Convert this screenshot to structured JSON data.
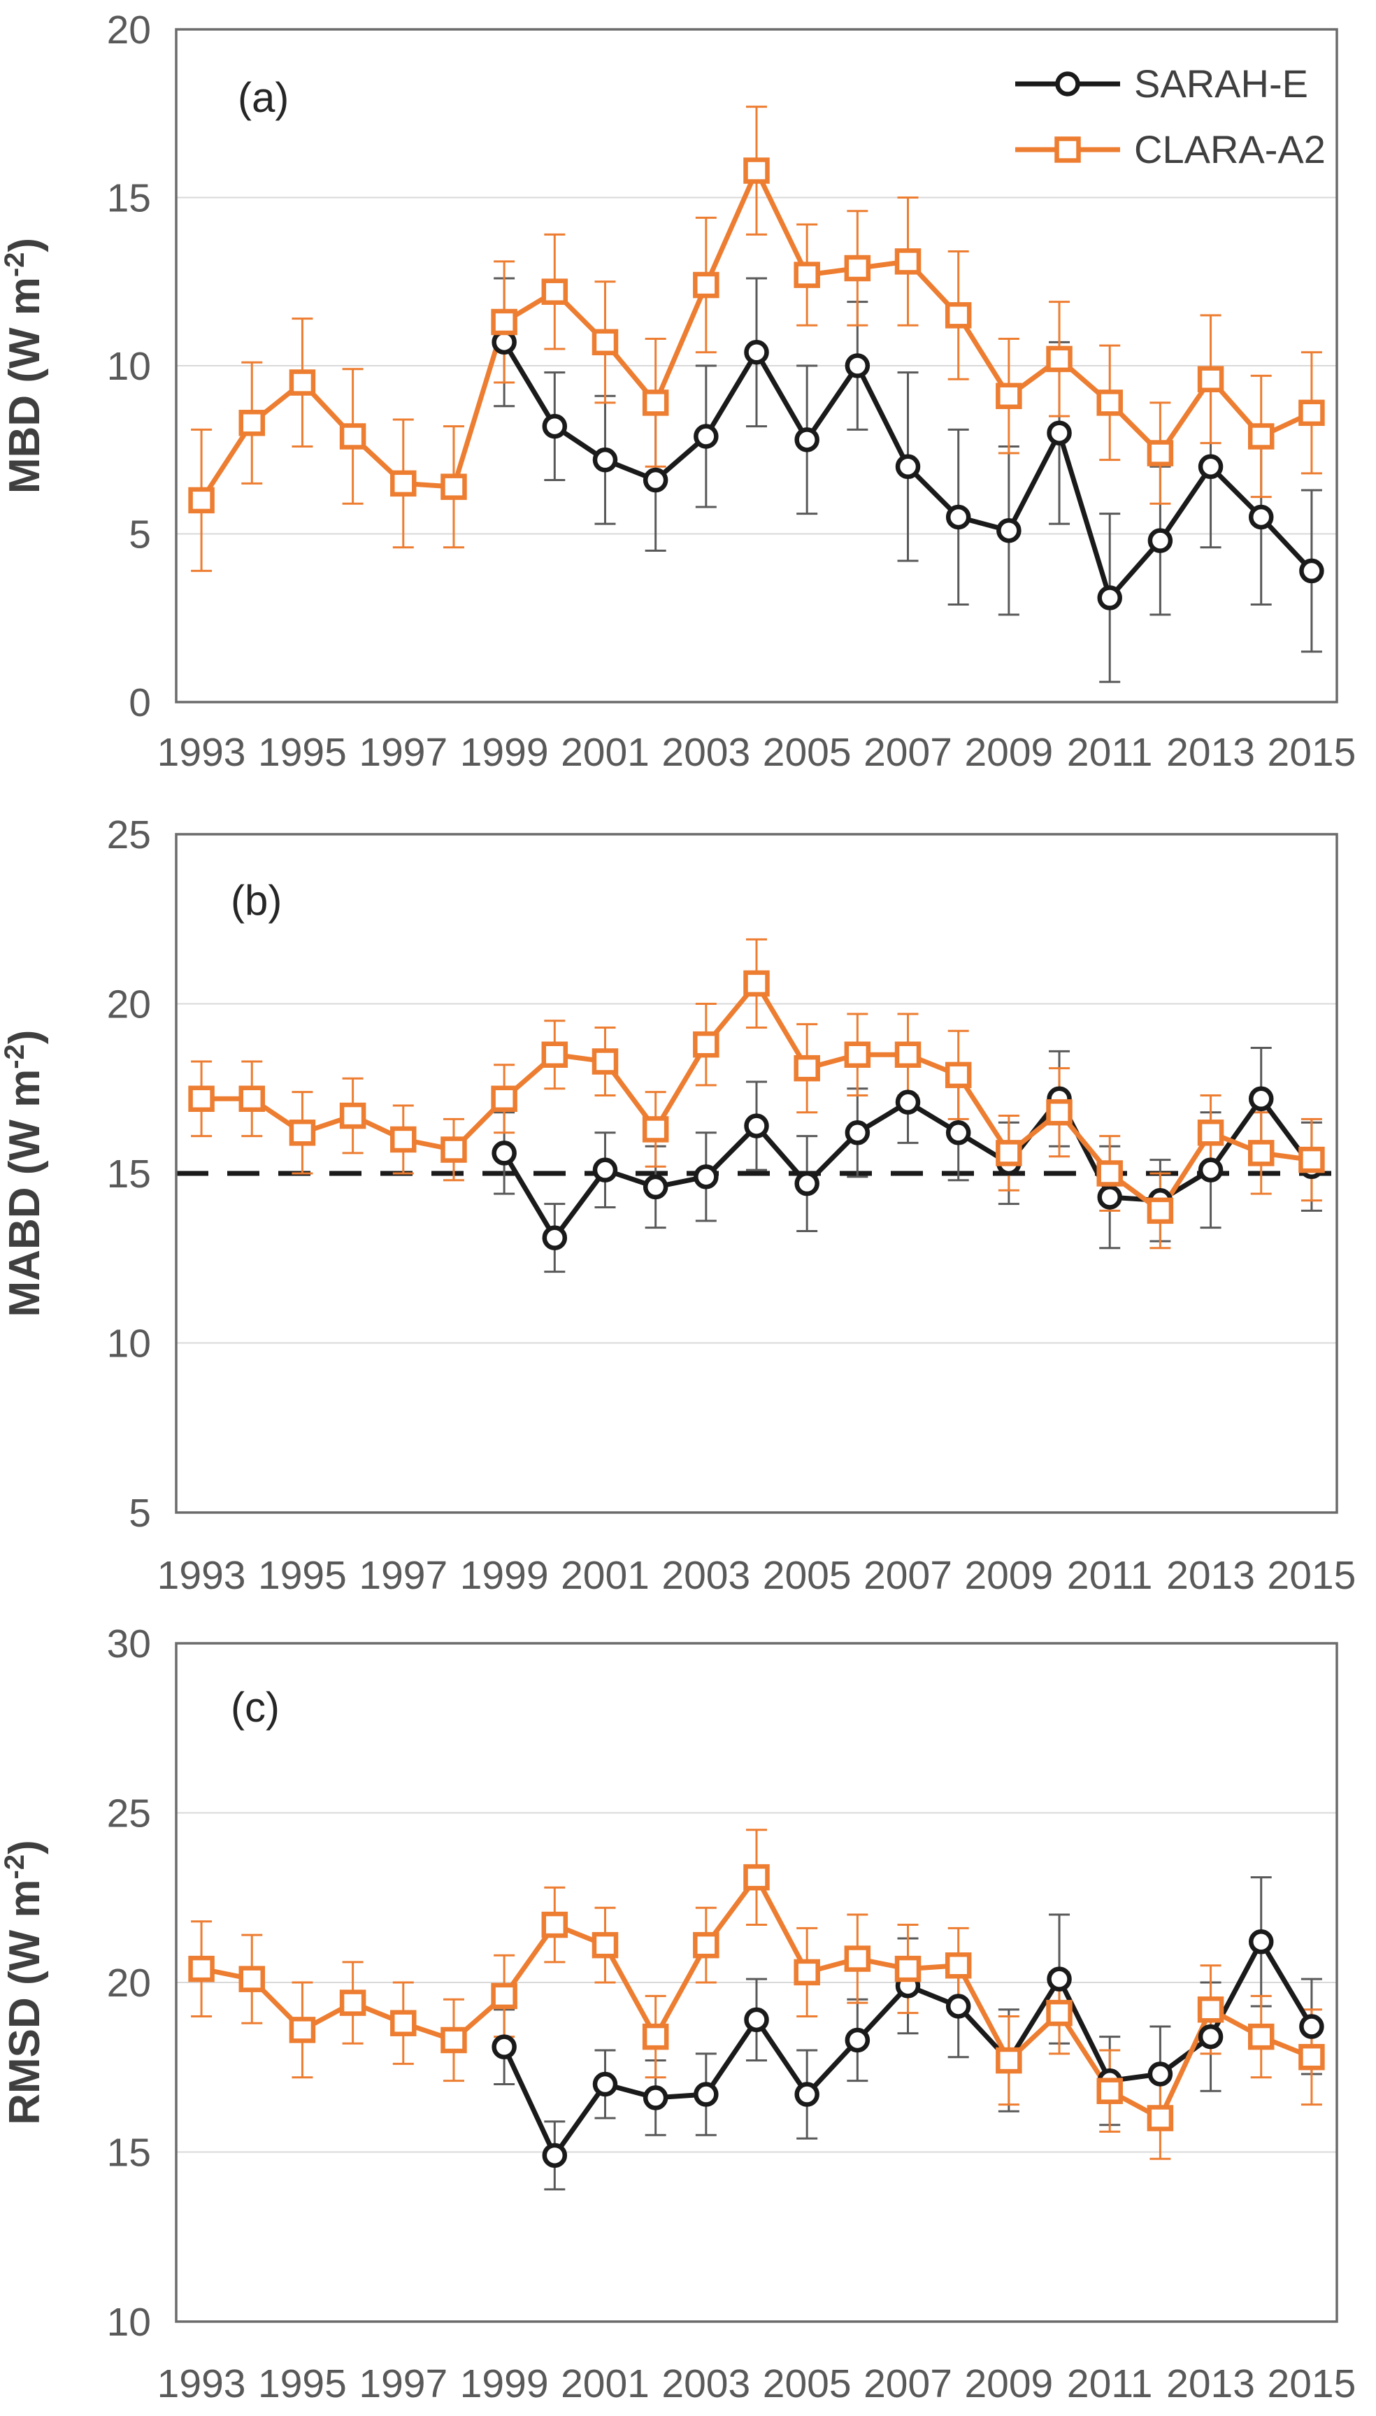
{
  "figure": {
    "background": "#ffffff",
    "x_years": [
      1993,
      1994,
      1995,
      1996,
      1997,
      1998,
      1999,
      2000,
      2001,
      2002,
      2003,
      2004,
      2005,
      2006,
      2007,
      2008,
      2009,
      2010,
      2011,
      2012,
      2013,
      2014,
      2015
    ],
    "xtick_labels": [
      "1993",
      "1995",
      "1997",
      "1999",
      "2001",
      "2003",
      "2005",
      "2007",
      "2009",
      "2011",
      "2013",
      "2015"
    ]
  },
  "colors": {
    "sarah": "#1a1a1a",
    "clara": "#ED7D31",
    "error_sarah": "#595959",
    "error_clara": "#ED7D31",
    "grid": "#D9D9D9",
    "frame": "#6b6b6b",
    "tick_text": "#595959",
    "title_text": "#3f3f3f",
    "panel_text": "#262626",
    "ref_line": "#1a1a1a",
    "marker_fill": "#ffffff"
  },
  "legend": {
    "items": [
      {
        "label": "SARAH-E",
        "series": "sarah",
        "marker": "circle"
      },
      {
        "label": "CLARA-A2",
        "series": "clara",
        "marker": "square"
      }
    ]
  },
  "chart_data": [
    {
      "type": "line",
      "panel_label": "(a)",
      "ylabel": {
        "prefix": "MBD (W m",
        "sup": "-2",
        "suffix": ")"
      },
      "ylim": [
        0,
        20
      ],
      "yticks": [
        "0",
        "5",
        "10",
        "15",
        "20"
      ],
      "gridlines": [
        5,
        10,
        15
      ],
      "ref_line": null,
      "legend": true,
      "grid_on": true,
      "legend_position": "top-right-inside",
      "series": [
        {
          "name": "SARAH-E",
          "marker": "circle",
          "color_key": "sarah",
          "err_color_key": "error_sarah",
          "values": [
            null,
            null,
            null,
            null,
            null,
            null,
            10.7,
            8.2,
            7.2,
            6.6,
            7.9,
            10.4,
            7.8,
            10.0,
            7.0,
            5.5,
            5.1,
            8.0,
            3.1,
            4.8,
            7.0,
            5.5,
            3.9
          ],
          "errors": [
            null,
            null,
            null,
            null,
            null,
            null,
            1.9,
            1.6,
            1.9,
            2.1,
            2.1,
            2.2,
            2.2,
            1.9,
            2.8,
            2.6,
            2.5,
            2.7,
            2.5,
            2.2,
            2.4,
            2.6,
            2.4
          ]
        },
        {
          "name": "CLARA-A2",
          "marker": "square",
          "color_key": "clara",
          "err_color_key": "error_clara",
          "values": [
            6.0,
            8.3,
            9.5,
            7.9,
            6.5,
            6.4,
            11.3,
            12.2,
            10.7,
            8.9,
            12.4,
            15.8,
            12.7,
            12.9,
            13.1,
            11.5,
            9.1,
            10.2,
            8.9,
            7.4,
            9.6,
            7.9,
            8.6
          ],
          "errors": [
            2.1,
            1.8,
            1.9,
            2.0,
            1.9,
            1.8,
            1.8,
            1.7,
            1.8,
            1.9,
            2.0,
            1.9,
            1.5,
            1.7,
            1.9,
            1.9,
            1.7,
            1.7,
            1.7,
            1.5,
            1.9,
            1.8,
            1.8
          ]
        }
      ]
    },
    {
      "type": "line",
      "panel_label": "(b)",
      "ylabel": {
        "prefix": "MABD (W m",
        "sup": "-2",
        "suffix": ")"
      },
      "ylim": [
        5,
        25
      ],
      "yticks": [
        "5",
        "10",
        "15",
        "20",
        "25"
      ],
      "gridlines": [
        10,
        20
      ],
      "ref_line": 15,
      "legend": false,
      "grid_on": true,
      "series": [
        {
          "name": "SARAH-E",
          "marker": "circle",
          "color_key": "sarah",
          "err_color_key": "error_sarah",
          "values": [
            null,
            null,
            null,
            null,
            null,
            null,
            15.6,
            13.1,
            15.1,
            14.6,
            14.9,
            16.4,
            14.7,
            16.2,
            17.1,
            16.2,
            15.3,
            17.2,
            14.3,
            14.2,
            15.1,
            17.2,
            15.2
          ],
          "errors": [
            null,
            null,
            null,
            null,
            null,
            null,
            1.2,
            1.0,
            1.1,
            1.2,
            1.3,
            1.3,
            1.4,
            1.3,
            1.2,
            1.4,
            1.2,
            1.4,
            1.5,
            1.2,
            1.7,
            1.5,
            1.3
          ]
        },
        {
          "name": "CLARA-A2",
          "marker": "square",
          "color_key": "clara",
          "err_color_key": "error_clara",
          "values": [
            17.2,
            17.2,
            16.2,
            16.7,
            16.0,
            15.7,
            17.2,
            18.5,
            18.3,
            16.3,
            18.8,
            20.6,
            18.1,
            18.5,
            18.5,
            17.9,
            15.6,
            16.8,
            15.0,
            13.9,
            16.2,
            15.6,
            15.4
          ],
          "errors": [
            1.1,
            1.1,
            1.2,
            1.1,
            1.0,
            0.9,
            1.0,
            1.0,
            1.0,
            1.1,
            1.2,
            1.3,
            1.3,
            1.2,
            1.2,
            1.3,
            1.1,
            1.3,
            1.1,
            1.1,
            1.1,
            1.2,
            1.2
          ]
        }
      ]
    },
    {
      "type": "line",
      "panel_label": "(c)",
      "ylabel": {
        "prefix": "RMSD (W m",
        "sup": "-2",
        "suffix": ")"
      },
      "ylim": [
        10,
        30
      ],
      "yticks": [
        "10",
        "15",
        "20",
        "25",
        "30"
      ],
      "gridlines": [
        15,
        20,
        25
      ],
      "ref_line": null,
      "legend": false,
      "grid_on": true,
      "series": [
        {
          "name": "SARAH-E",
          "marker": "circle",
          "color_key": "sarah",
          "err_color_key": "error_sarah",
          "values": [
            null,
            null,
            null,
            null,
            null,
            null,
            18.1,
            14.9,
            17.0,
            16.6,
            16.7,
            18.9,
            16.7,
            18.3,
            19.9,
            19.3,
            17.7,
            20.1,
            17.1,
            17.3,
            18.4,
            21.2,
            18.7
          ],
          "errors": [
            null,
            null,
            null,
            null,
            null,
            null,
            1.1,
            1.0,
            1.0,
            1.1,
            1.2,
            1.2,
            1.3,
            1.2,
            1.4,
            1.5,
            1.5,
            1.9,
            1.3,
            1.4,
            1.6,
            1.9,
            1.4
          ]
        },
        {
          "name": "CLARA-A2",
          "marker": "square",
          "color_key": "clara",
          "err_color_key": "error_clara",
          "values": [
            20.4,
            20.1,
            18.6,
            19.4,
            18.8,
            18.3,
            19.6,
            21.7,
            21.1,
            18.4,
            21.1,
            23.1,
            20.3,
            20.7,
            20.4,
            20.5,
            17.7,
            19.1,
            16.8,
            16.0,
            19.2,
            18.4,
            17.8
          ],
          "errors": [
            1.4,
            1.3,
            1.4,
            1.2,
            1.2,
            1.2,
            1.2,
            1.1,
            1.1,
            1.2,
            1.1,
            1.4,
            1.3,
            1.3,
            1.3,
            1.1,
            1.3,
            1.2,
            1.2,
            1.2,
            1.3,
            1.2,
            1.4
          ]
        }
      ]
    }
  ]
}
